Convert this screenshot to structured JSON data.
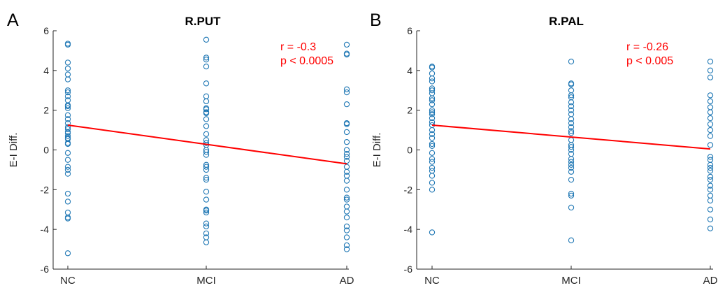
{
  "chart_data": [
    {
      "panel_label": "A",
      "type": "scatter",
      "title": "R.PUT",
      "ylabel": "E-I Diff.",
      "xlabel": "",
      "categories": [
        "NC",
        "MCI",
        "AD"
      ],
      "ylim": [
        -6,
        6
      ],
      "yticks": [
        -6,
        -4,
        -2,
        0,
        2,
        4,
        6
      ],
      "grid": false,
      "annotation": [
        "r = -0.3",
        "p < 0.0005"
      ],
      "colors": {
        "points": "#1f77b4",
        "fit": "#ff0000",
        "annotation": "#ff0000"
      },
      "fit_line": {
        "x": [
          "NC",
          "AD"
        ],
        "y": [
          1.25,
          -0.7
        ]
      },
      "points": [
        {
          "category": "NC",
          "values": [
            5.35,
            5.3,
            4.4,
            4.1,
            3.8,
            3.55,
            3.0,
            2.9,
            2.7,
            2.5,
            2.25,
            2.2,
            2.1,
            1.75,
            1.55,
            1.35,
            1.15,
            1.05,
            0.9,
            0.85,
            0.7,
            0.6,
            0.55,
            0.35,
            0.3,
            -0.15,
            -0.5,
            -0.85,
            -1.0,
            -1.2,
            -2.2,
            -2.6,
            -3.15,
            -3.4,
            -3.45,
            -5.2
          ]
        },
        {
          "category": "MCI",
          "values": [
            5.55,
            4.65,
            4.55,
            4.2,
            3.35,
            2.7,
            2.45,
            2.1,
            2.05,
            1.9,
            1.85,
            1.55,
            1.2,
            0.8,
            0.5,
            0.35,
            0.25,
            0.0,
            -0.1,
            -0.25,
            -0.75,
            -0.85,
            -1.0,
            -1.4,
            -1.5,
            -2.1,
            -2.5,
            -3.0,
            -3.05,
            -3.15,
            -3.7,
            -3.85,
            -4.2,
            -4.4,
            -4.65
          ]
        },
        {
          "category": "AD",
          "values": [
            5.3,
            4.85,
            4.8,
            3.05,
            2.9,
            2.3,
            1.35,
            1.3,
            0.9,
            0.4,
            0.0,
            -0.2,
            -0.35,
            -0.55,
            -0.85,
            -1.1,
            -1.3,
            -1.55,
            -2.0,
            -2.4,
            -2.5,
            -2.85,
            -3.1,
            -3.4,
            -3.85,
            -4.05,
            -4.4,
            -4.8,
            -5.0
          ]
        }
      ]
    },
    {
      "panel_label": "B",
      "type": "scatter",
      "title": "R.PAL",
      "ylabel": "E-I Diff.",
      "xlabel": "",
      "categories": [
        "NC",
        "MCI",
        "AD"
      ],
      "ylim": [
        -6,
        6
      ],
      "yticks": [
        -6,
        -4,
        -2,
        0,
        2,
        4,
        6
      ],
      "grid": false,
      "annotation": [
        "r = -0.26",
        "p < 0.005"
      ],
      "colors": {
        "points": "#1f77b4",
        "fit": "#ff0000",
        "annotation": "#ff0000"
      },
      "fit_line": {
        "x": [
          "NC",
          "AD"
        ],
        "y": [
          1.25,
          0.05
        ]
      },
      "points": [
        {
          "category": "NC",
          "values": [
            4.2,
            4.15,
            3.85,
            3.6,
            3.45,
            3.1,
            3.0,
            2.85,
            2.6,
            2.5,
            2.3,
            2.0,
            1.9,
            1.8,
            1.6,
            1.4,
            1.25,
            1.0,
            0.8,
            0.6,
            0.3,
            0.2,
            -0.15,
            -0.45,
            -0.6,
            -0.9,
            -1.05,
            -1.3,
            -1.65,
            -2.0,
            -4.15
          ]
        },
        {
          "category": "MCI",
          "values": [
            4.45,
            3.35,
            3.3,
            3.0,
            2.75,
            2.65,
            2.4,
            2.2,
            2.0,
            1.8,
            1.55,
            1.35,
            1.15,
            0.95,
            0.85,
            0.5,
            0.25,
            0.15,
            0.0,
            -0.2,
            -0.45,
            -0.6,
            -0.75,
            -0.9,
            -1.1,
            -1.5,
            -2.2,
            -2.3,
            -2.9,
            -4.55
          ]
        },
        {
          "category": "AD",
          "values": [
            4.45,
            4.0,
            3.65,
            2.75,
            2.45,
            2.15,
            1.9,
            1.6,
            1.3,
            1.0,
            0.7,
            0.25,
            -0.35,
            -0.5,
            -0.75,
            -0.9,
            -1.05,
            -1.35,
            -1.5,
            -1.8,
            -2.0,
            -2.3,
            -2.55,
            -3.0,
            -3.5,
            -3.95
          ]
        }
      ]
    }
  ]
}
